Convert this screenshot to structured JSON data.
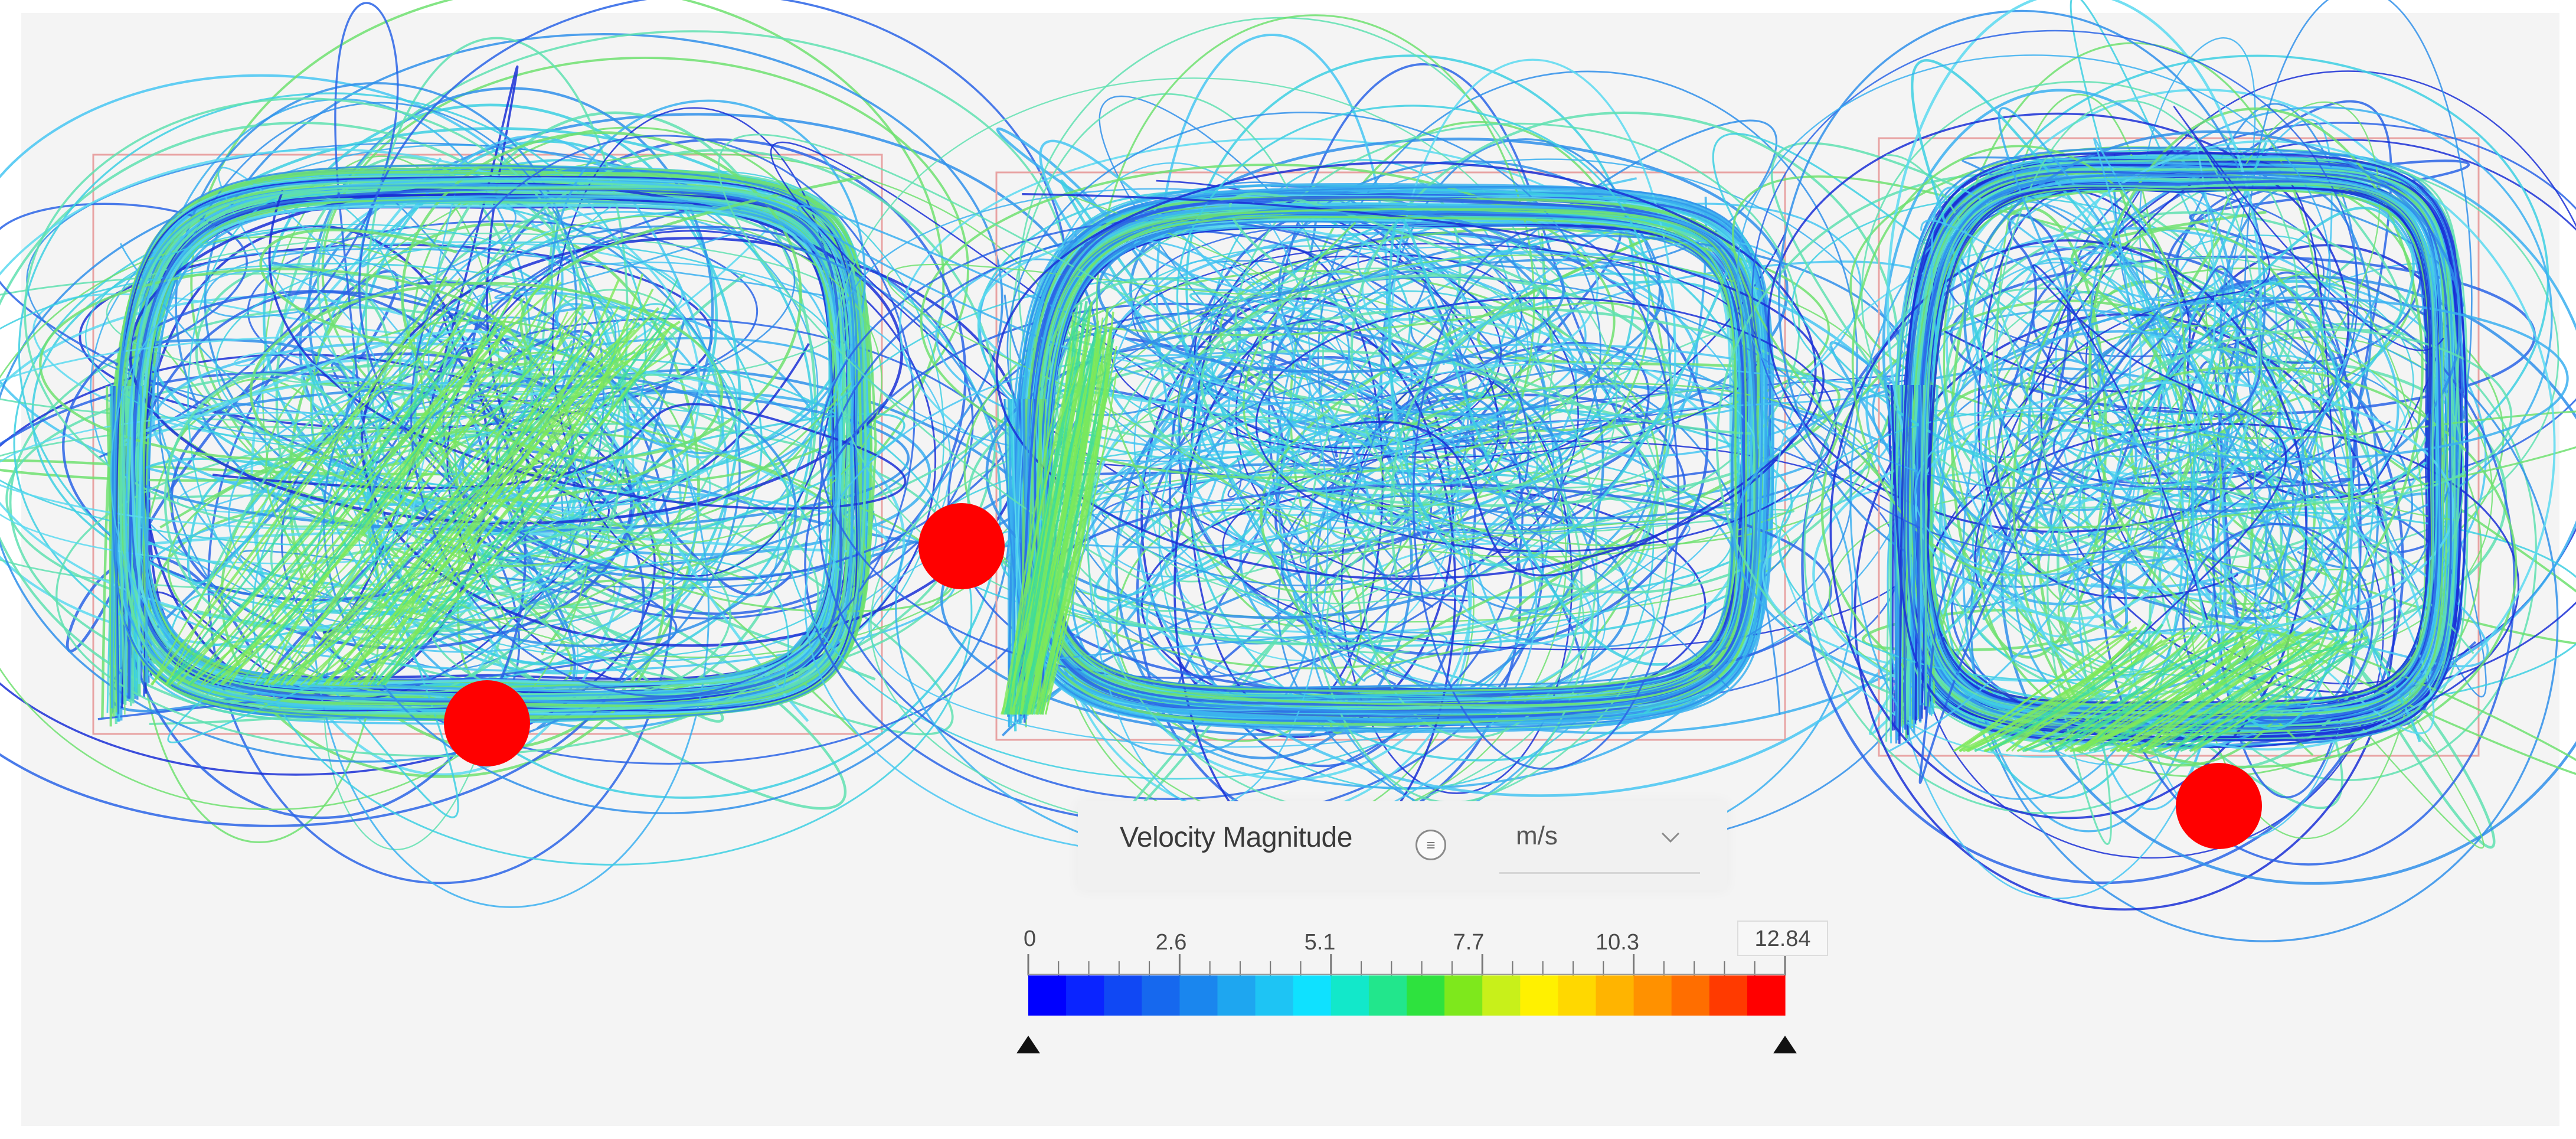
{
  "legend": {
    "title": "Velocity Magnitude",
    "info_icon": "info-icon",
    "unit": "m/s",
    "unit_chevron": "chevron-down-icon",
    "min_label": "0",
    "max_label": "12.84",
    "ticks": [
      "2.6",
      "5.1",
      "7.7",
      "10.3"
    ],
    "min_handle": "range-handle-triangle",
    "max_handle": "range-handle-triangle",
    "colormap": [
      "#0000ff",
      "#0a24ff",
      "#1048f4",
      "#1668ee",
      "#1a86ee",
      "#1ea6f0",
      "#1ec4f4",
      "#0fe1ff",
      "#12e8ca",
      "#22e68c",
      "#2ee23e",
      "#7ee81c",
      "#c8f01a",
      "#fff100",
      "#ffd800",
      "#ffb400",
      "#ff9100",
      "#ff6e00",
      "#ff3a00",
      "#ff0000"
    ]
  },
  "views": [
    {
      "name": "left-room-streamlines"
    },
    {
      "name": "center-room-streamlines"
    },
    {
      "name": "right-room-streamlines"
    }
  ],
  "colors": {
    "marker": "#ff0000",
    "background": "#f4f4f4",
    "streamline_palette": [
      "#1a2fd6",
      "#2a64e6",
      "#2f8fea",
      "#3aaff0",
      "#46c6f2",
      "#5ad9f0",
      "#3ccfe2",
      "#5fe0b0",
      "#6fe070"
    ]
  }
}
